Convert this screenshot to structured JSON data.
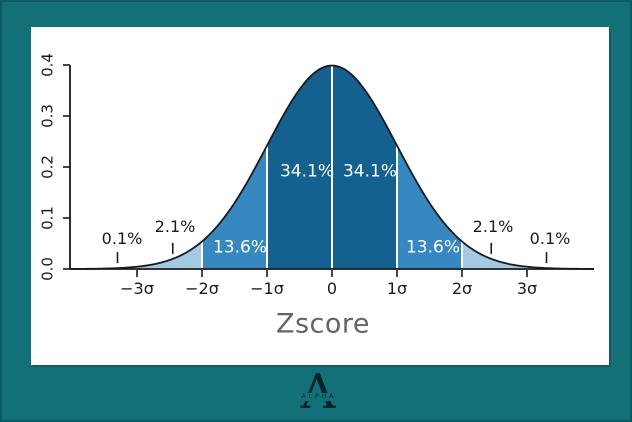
{
  "window": {
    "background": "#147078",
    "frame_border": "#0c5a64",
    "panel_background": "#ffffff"
  },
  "chart_data": {
    "type": "area",
    "description": "Standard normal distribution (bell curve) with shaded standard-deviation bands",
    "curve": "standard normal probability density function",
    "xlabel": "Zscore",
    "ylabel": "",
    "xlim_sigma": [
      -4,
      4
    ],
    "ylim": [
      0,
      0.4
    ],
    "grid": false,
    "y_ticks": [
      "0.0",
      "0.1",
      "0.2",
      "0.3",
      "0.4"
    ],
    "x_ticks": [
      {
        "value": -3,
        "label": "−3σ"
      },
      {
        "value": -2,
        "label": "−2σ"
      },
      {
        "value": -1,
        "label": "−1σ"
      },
      {
        "value": 0,
        "label": "0"
      },
      {
        "value": 1,
        "label": "1σ"
      },
      {
        "value": 2,
        "label": "2σ"
      },
      {
        "value": 3,
        "label": "3σ"
      }
    ],
    "regions": [
      {
        "from": -4,
        "to": -3,
        "percent": 0.1,
        "label": "0.1%",
        "color": "#ffffff"
      },
      {
        "from": -3,
        "to": -2,
        "percent": 2.1,
        "label": "2.1%",
        "color": "#a5c8e3"
      },
      {
        "from": -2,
        "to": -1,
        "percent": 13.6,
        "label": "13.6%",
        "color": "#3787c1"
      },
      {
        "from": -1,
        "to": 0,
        "percent": 34.1,
        "label": "34.1%",
        "color": "#14608f"
      },
      {
        "from": 0,
        "to": 1,
        "percent": 34.1,
        "label": "34.1%",
        "color": "#14608f"
      },
      {
        "from": 1,
        "to": 2,
        "percent": 13.6,
        "label": "13.6%",
        "color": "#3787c1"
      },
      {
        "from": 2,
        "to": 3,
        "percent": 2.1,
        "label": "2.1%",
        "color": "#a5c8e3"
      },
      {
        "from": 3,
        "to": 4,
        "percent": 0.1,
        "label": "0.1%",
        "color": "#ffffff"
      }
    ],
    "inside_labels": [
      {
        "text": "34.1%",
        "sigma": -0.5
      },
      {
        "text": "34.1%",
        "sigma": 0.5
      },
      {
        "text": "13.6%",
        "sigma": -1.5
      },
      {
        "text": "13.6%",
        "sigma": 1.5
      }
    ],
    "outside_labels": [
      {
        "text": "0.1%",
        "sigma": -3.3
      },
      {
        "text": "2.1%",
        "sigma": -2.45
      },
      {
        "text": "2.1%",
        "sigma": 2.45
      },
      {
        "text": "0.1%",
        "sigma": 3.3
      }
    ],
    "divider_color": "#ffffff",
    "outline_color": "#1a1a1a",
    "axis_color": "#1a1a1a",
    "title_color": "#646464",
    "legend": "none"
  },
  "logo": {
    "letter": "A",
    "word": "ALPHA",
    "color": "#06232b"
  }
}
